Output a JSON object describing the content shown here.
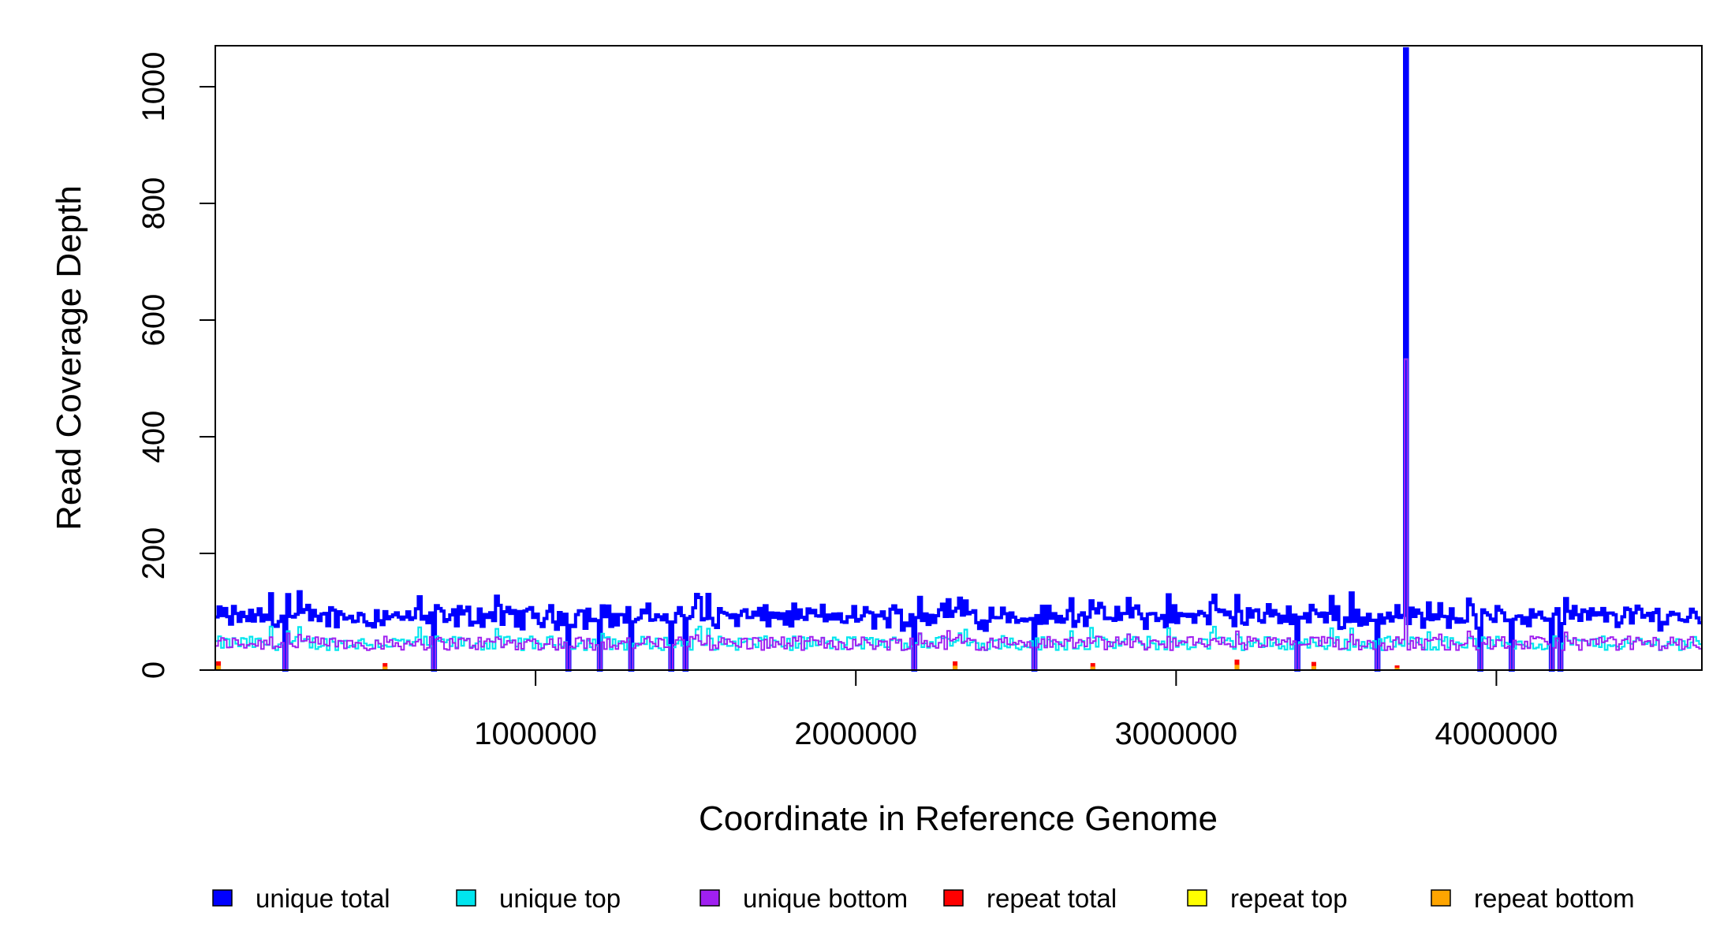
{
  "chart_data": {
    "type": "line",
    "title": "",
    "xlabel": "Coordinate in Reference Genome",
    "ylabel": "Read Coverage Depth",
    "xlim": [
      0,
      4641652
    ],
    "ylim": [
      0,
      1070
    ],
    "x_ticks": [
      1000000,
      2000000,
      3000000,
      4000000
    ],
    "x_tick_labels": [
      "1000000",
      "2000000",
      "3000000",
      "4000000"
    ],
    "y_ticks": [
      0,
      200,
      400,
      600,
      800,
      1000
    ],
    "y_tick_labels": [
      "0",
      "200",
      "400",
      "600",
      "800",
      "1000"
    ],
    "grid": false,
    "legend_position": "bottom",
    "series": [
      {
        "name": "unique total",
        "color": "#0000FF",
        "baseline": 90,
        "variation": 22,
        "spike": {
          "x": 3720000,
          "y": 1065
        }
      },
      {
        "name": "unique top",
        "color": "#00E5EE",
        "baseline": 46,
        "variation": 12,
        "spike": {
          "x": 3720000,
          "y": 533
        }
      },
      {
        "name": "unique bottom",
        "color": "#A020F0",
        "baseline": 46,
        "variation": 12,
        "spike": {
          "x": 3720000,
          "y": 533
        }
      },
      {
        "name": "repeat total",
        "color": "#FF0000",
        "baseline": 0,
        "variation": 0
      },
      {
        "name": "repeat top",
        "color": "#FFFF00",
        "baseline": 0,
        "variation": 0
      },
      {
        "name": "repeat bottom",
        "color": "#FFA500",
        "baseline": 0,
        "variation": 0
      }
    ],
    "dropouts_x": [
      220000,
      680000,
      1100000,
      1200000,
      1300000,
      1420000,
      1470000,
      2180000,
      2560000,
      3380000,
      3630000,
      3950000,
      4050000,
      4170000,
      4200000
    ],
    "repeat_spikes": [
      {
        "x": 10000,
        "y": 15
      },
      {
        "x": 530000,
        "y": 12
      },
      {
        "x": 2310000,
        "y": 15
      },
      {
        "x": 2740000,
        "y": 12
      },
      {
        "x": 3190000,
        "y": 18
      },
      {
        "x": 3430000,
        "y": 14
      },
      {
        "x": 3690000,
        "y": 8
      }
    ]
  }
}
